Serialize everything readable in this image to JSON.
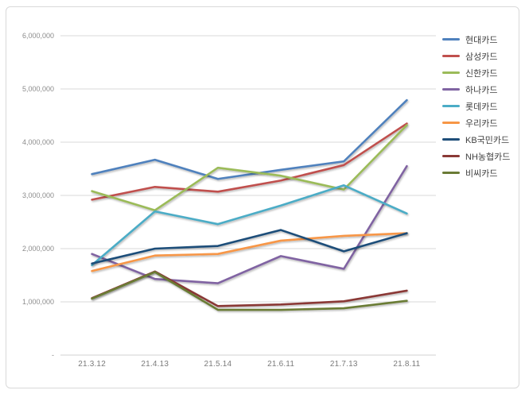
{
  "chart_data": {
    "type": "line",
    "title": "",
    "xlabel": "",
    "ylabel": "",
    "x_categories": [
      "21.3.12",
      "21.4.13",
      "21.5.14",
      "21.6.11",
      "21.7.13",
      "21.8.11"
    ],
    "y_tick_labels": [
      "-",
      "1,000,000",
      "2,000,000",
      "3,000,000",
      "4,000,000",
      "5,000,000",
      "6,000,000"
    ],
    "ylim": [
      0,
      6000000
    ],
    "y_tick_step": 1000000,
    "grid": true,
    "legend_position": "right",
    "series": [
      {
        "name": "현대카드",
        "color": "#4F81BD",
        "values": [
          3400000,
          3670000,
          3310000,
          3480000,
          3640000,
          4790000
        ]
      },
      {
        "name": "삼성카드",
        "color": "#C0504D",
        "values": [
          2920000,
          3160000,
          3070000,
          3280000,
          3570000,
          4350000
        ]
      },
      {
        "name": "신한카드",
        "color": "#9BBB59",
        "values": [
          3080000,
          2720000,
          3520000,
          3370000,
          3110000,
          4320000
        ]
      },
      {
        "name": "하나카드",
        "color": "#8064A2",
        "values": [
          1900000,
          1430000,
          1350000,
          1860000,
          1620000,
          3550000
        ]
      },
      {
        "name": "롯데카드",
        "color": "#4BACC6",
        "values": [
          1690000,
          2700000,
          2460000,
          2810000,
          3190000,
          2660000
        ]
      },
      {
        "name": "우리카드",
        "color": "#F79646",
        "values": [
          1580000,
          1870000,
          1900000,
          2150000,
          2240000,
          2290000
        ]
      },
      {
        "name": "KB국민카드",
        "color": "#1F4E79",
        "values": [
          1720000,
          2000000,
          2050000,
          2350000,
          1950000,
          2290000
        ]
      },
      {
        "name": "NH농협카드",
        "color": "#8A3936",
        "values": [
          1070000,
          1570000,
          920000,
          950000,
          1010000,
          1210000
        ]
      },
      {
        "name": "비씨카드",
        "color": "#6A7B35",
        "values": [
          1060000,
          1560000,
          850000,
          850000,
          880000,
          1020000
        ]
      }
    ]
  },
  "colors": {
    "gridline": "#D9D9D9",
    "axis_line": "#D0D0D0",
    "frame_border": "#D9D9D9",
    "background": "#FFFFFF"
  }
}
